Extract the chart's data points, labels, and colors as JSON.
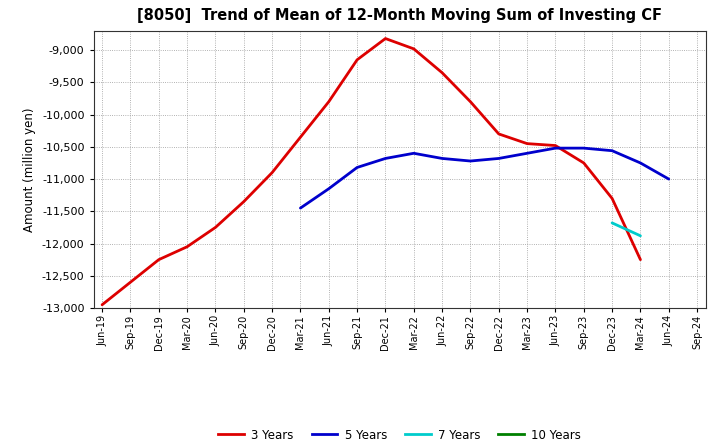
{
  "title": "[8050]  Trend of Mean of 12-Month Moving Sum of Investing CF",
  "ylabel": "Amount (million yen)",
  "background_color": "#ffffff",
  "grid_color": "#999999",
  "ylim": [
    -13000,
    -8700
  ],
  "yticks": [
    -13000,
    -12500,
    -12000,
    -11500,
    -11000,
    -10500,
    -10000,
    -9500,
    -9000
  ],
  "x_labels": [
    "Jun-19",
    "Sep-19",
    "Dec-19",
    "Mar-20",
    "Jun-20",
    "Sep-20",
    "Dec-20",
    "Mar-21",
    "Jun-21",
    "Sep-21",
    "Dec-21",
    "Mar-22",
    "Jun-22",
    "Sep-22",
    "Dec-22",
    "Mar-23",
    "Jun-23",
    "Sep-23",
    "Dec-23",
    "Mar-24",
    "Jun-24",
    "Sep-24"
  ],
  "series": {
    "3yr": {
      "color": "#dd0000",
      "label": "3 Years",
      "values": [
        -12950,
        -12600,
        -12250,
        -12050,
        -11750,
        -11350,
        -10900,
        -10350,
        -9800,
        -9150,
        -8820,
        -8980,
        -9350,
        -9800,
        -10300,
        -10450,
        -10480,
        -10750,
        -11300,
        -12250,
        null,
        null
      ]
    },
    "5yr": {
      "color": "#0000cc",
      "label": "5 Years",
      "values": [
        null,
        null,
        null,
        null,
        null,
        null,
        null,
        -11450,
        -11150,
        -10820,
        -10680,
        -10600,
        -10680,
        -10720,
        -10680,
        -10600,
        -10520,
        -10520,
        -10560,
        -10750,
        -11000,
        null
      ]
    },
    "7yr": {
      "color": "#00cccc",
      "label": "7 Years",
      "values": [
        null,
        null,
        null,
        null,
        null,
        null,
        null,
        null,
        null,
        null,
        null,
        null,
        null,
        null,
        null,
        null,
        null,
        null,
        -11680,
        -11880,
        null,
        null
      ]
    },
    "10yr": {
      "color": "#008000",
      "label": "10 Years",
      "values": [
        null,
        null,
        null,
        null,
        null,
        null,
        null,
        null,
        null,
        null,
        null,
        null,
        null,
        null,
        null,
        null,
        null,
        null,
        null,
        null,
        null,
        null
      ]
    }
  }
}
